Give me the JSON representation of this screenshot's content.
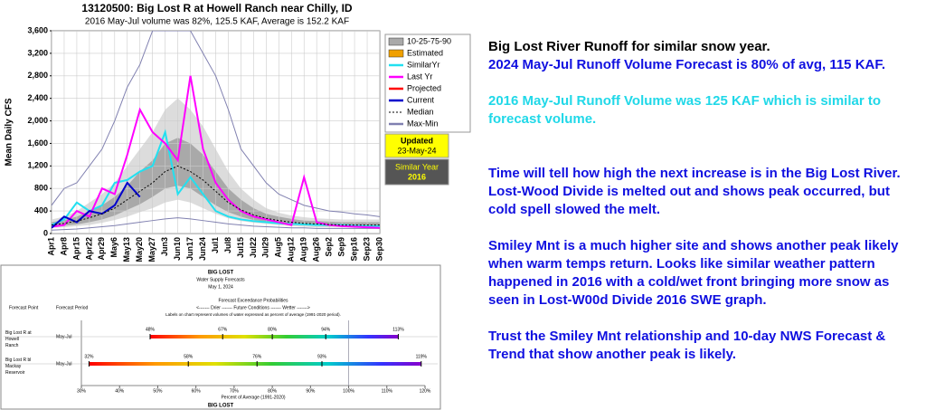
{
  "chart_data": [
    {
      "type": "line",
      "title": "13120500: Big Lost R at Howell Ranch near Chilly, ID",
      "subtitle": "2016 May-Jul volume was 82%, 125.5 KAF, Average is 152.2 KAF",
      "ylabel": "Mean Daily CFS",
      "grid": true,
      "categories": [
        "Apr1",
        "Apr8",
        "Apr15",
        "Apr22",
        "Apr29",
        "May6",
        "May13",
        "May20",
        "May27",
        "Jun3",
        "Jun10",
        "Jun17",
        "Jun24",
        "Jul1",
        "Jul8",
        "Jul15",
        "Jul22",
        "Jul29",
        "Aug5",
        "Aug12",
        "Aug19",
        "Aug26",
        "Sep2",
        "Sep9",
        "Sep16",
        "Sep23",
        "Sep30"
      ],
      "ylim": [
        0,
        3600
      ],
      "yticks": [
        0,
        400,
        800,
        {
          "value": 1200,
          "label": "1,200"
        },
        {
          "value": 1600,
          "label": "1,600"
        },
        {
          "value": 2000,
          "label": "2,000"
        },
        {
          "value": 2400,
          "label": "2,400"
        },
        {
          "value": 2800,
          "label": "2,800"
        },
        {
          "value": 3200,
          "label": "3,200"
        },
        {
          "value": 3600,
          "label": "3,600"
        }
      ],
      "bands": {
        "name": "10-25-75-90",
        "outer_color": "#dcdcdc",
        "inner_color": "#a9a9a9",
        "p10": [
          100,
          110,
          130,
          150,
          190,
          240,
          300,
          380,
          450,
          550,
          600,
          550,
          450,
          350,
          270,
          220,
          190,
          170,
          150,
          130,
          120,
          110,
          110,
          110,
          110,
          110,
          110
        ],
        "p25": [
          120,
          140,
          160,
          200,
          250,
          320,
          420,
          520,
          650,
          800,
          850,
          800,
          650,
          500,
          380,
          300,
          240,
          210,
          180,
          160,
          150,
          140,
          130,
          130,
          130,
          130,
          130
        ],
        "p75": [
          200,
          240,
          300,
          400,
          500,
          650,
          850,
          1100,
          1300,
          1600,
          1700,
          1600,
          1400,
          1100,
          800,
          600,
          450,
          350,
          300,
          260,
          230,
          220,
          210,
          200,
          200,
          200,
          200
        ],
        "p90": [
          250,
          300,
          400,
          550,
          700,
          900,
          1200,
          1500,
          1800,
          2200,
          2400,
          2200,
          1900,
          1500,
          1100,
          800,
          600,
          450,
          370,
          320,
          290,
          270,
          260,
          250,
          250,
          250,
          250
        ]
      },
      "estimated": {
        "name": "Estimated",
        "color": "#f0a000"
      },
      "projected": {
        "name": "Projected",
        "color": "#ff0000"
      },
      "series": [
        {
          "name": "SimilarYr",
          "color": "#22e0f0",
          "values": [
            150,
            250,
            550,
            400,
            500,
            900,
            950,
            1100,
            1200,
            1800,
            700,
            1000,
            700,
            400,
            300,
            250,
            220,
            200,
            180,
            170,
            160,
            150,
            150,
            150,
            140,
            130,
            130
          ]
        },
        {
          "name": "Last Yr",
          "color": "#ff00ff",
          "values": [
            120,
            150,
            400,
            300,
            800,
            700,
            1400,
            2200,
            1800,
            1600,
            1300,
            2800,
            1500,
            900,
            600,
            400,
            300,
            250,
            200,
            150,
            1000,
            200,
            150,
            130,
            120,
            110,
            100
          ]
        },
        {
          "name": "Current",
          "color": "#0000cc",
          "values": [
            100,
            300,
            200,
            400,
            350,
            500,
            900,
            650,
            null,
            null,
            null,
            null,
            null,
            null,
            null,
            null,
            null,
            null,
            null,
            null,
            null,
            null,
            null,
            null,
            null,
            null,
            null
          ]
        },
        {
          "name": "Median",
          "color": "#000000",
          "dash": true,
          "values": [
            150,
            180,
            220,
            280,
            350,
            450,
            600,
            750,
            900,
            1100,
            1200,
            1100,
            950,
            750,
            550,
            420,
            330,
            270,
            230,
            200,
            180,
            170,
            160,
            150,
            150,
            150,
            150
          ]
        }
      ],
      "maxmin": {
        "name": "Max-Min",
        "color": "#8080b0",
        "max": [
          500,
          800,
          900,
          1200,
          1500,
          2000,
          2600,
          3000,
          3600,
          3600,
          3600,
          3600,
          3200,
          2800,
          2200,
          1500,
          1200,
          900,
          700,
          600,
          500,
          450,
          400,
          380,
          350,
          330,
          300
        ],
        "min": [
          60,
          70,
          80,
          100,
          120,
          140,
          170,
          200,
          230,
          260,
          280,
          260,
          230,
          200,
          170,
          150,
          130,
          120,
          110,
          100,
          100,
          90,
          90,
          90,
          90,
          90,
          90
        ]
      },
      "updated": {
        "label": "Updated",
        "date": "23-May-24"
      },
      "similar_year": {
        "label": "Similar Year",
        "year": "2016"
      }
    },
    {
      "type": "range",
      "title": "BIG LOST",
      "subtitle": "Water Supply Forecasts",
      "date": "May 1, 2024",
      "heading": "Forecast Exceedance Probabilities",
      "direction": "<------- Drier ------- Future Conditions ------- Wetter ------->",
      "note": "Labels on chart represent volumes of water expressed as percent of average (1991-2020 period).",
      "col_point": "Forecast Point",
      "col_period": "Forecast Period",
      "xlabel": "Percent of Average (1991-2020)",
      "footer": "BIG LOST",
      "xlim": [
        30,
        120
      ],
      "xticks": [
        {
          "value": 30,
          "label": "30%"
        },
        {
          "value": 40,
          "label": "40%"
        },
        {
          "value": 50,
          "label": "50%"
        },
        {
          "value": 60,
          "label": "60%"
        },
        {
          "value": 70,
          "label": "70%"
        },
        {
          "value": 80,
          "label": "80%"
        },
        {
          "value": 90,
          "label": "90%"
        },
        {
          "value": 100,
          "label": "100%"
        },
        {
          "value": 110,
          "label": "110%"
        },
        {
          "value": 120,
          "label": "120%"
        }
      ],
      "reference": 100,
      "rows": [
        {
          "name": "Big Lost R at Howell Ranch",
          "period": "May-Jul",
          "values": [
            48,
            67,
            80,
            94,
            113
          ],
          "value_labels": [
            "48%",
            "67%",
            "80%",
            "94%",
            "113%"
          ]
        },
        {
          "name": "Big Lost R bl Mackay Reservoir",
          "period": "May-Jul",
          "values": [
            32,
            58,
            76,
            93,
            119
          ],
          "value_labels": [
            "32%",
            "58%",
            "76%",
            "93%",
            "119%"
          ]
        }
      ]
    }
  ],
  "notes": [
    {
      "text": "Big Lost River Runoff for similar snow year.",
      "color": "#000000"
    },
    {
      "text": "2024 May-Jul Runoff Volume Forecast is 80% of avg, 115 KAF.",
      "color": "#1010e0"
    },
    {
      "text": "2016 May-Jul Runoff Volume was 125 KAF which is similar to forecast volume.",
      "color": "#20d8e8"
    },
    {
      "text": "Time will tell how high the next increase is in the Big Lost River. Lost-Wood Divide is melted out and shows peak occurred, but cold spell slowed the melt.",
      "color": "#1010e0"
    },
    {
      "text": "Smiley Mnt is a much higher site and shows another peak likely when warm temps return. Looks like similar weather pattern happened in 2016 with a cold/wet front bringing more snow as seen in Lost-W00d Divide 2016 SWE graph.",
      "color": "#1010e0"
    },
    {
      "text": "Trust the Smiley Mnt relationship and 10-day NWS Forecast & Trend that show another peak is likely.",
      "color": "#1010e0"
    }
  ]
}
